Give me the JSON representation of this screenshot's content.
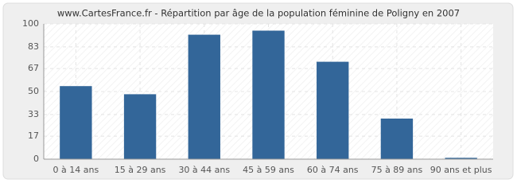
{
  "chart_data": {
    "type": "bar",
    "title": "www.CartesFrance.fr - Répartition par âge de la population féminine de Poligny en 2007",
    "categories": [
      "0 à 14 ans",
      "15 à 29 ans",
      "30 à 44 ans",
      "45 à 59 ans",
      "60 à 74 ans",
      "75 à 89 ans",
      "90 ans et plus"
    ],
    "values": [
      54,
      48,
      92,
      95,
      72,
      30,
      1
    ],
    "color": "#336699",
    "ylim": [
      0,
      100
    ],
    "yticks": [
      0,
      17,
      33,
      50,
      67,
      83,
      100
    ],
    "grid": true
  }
}
